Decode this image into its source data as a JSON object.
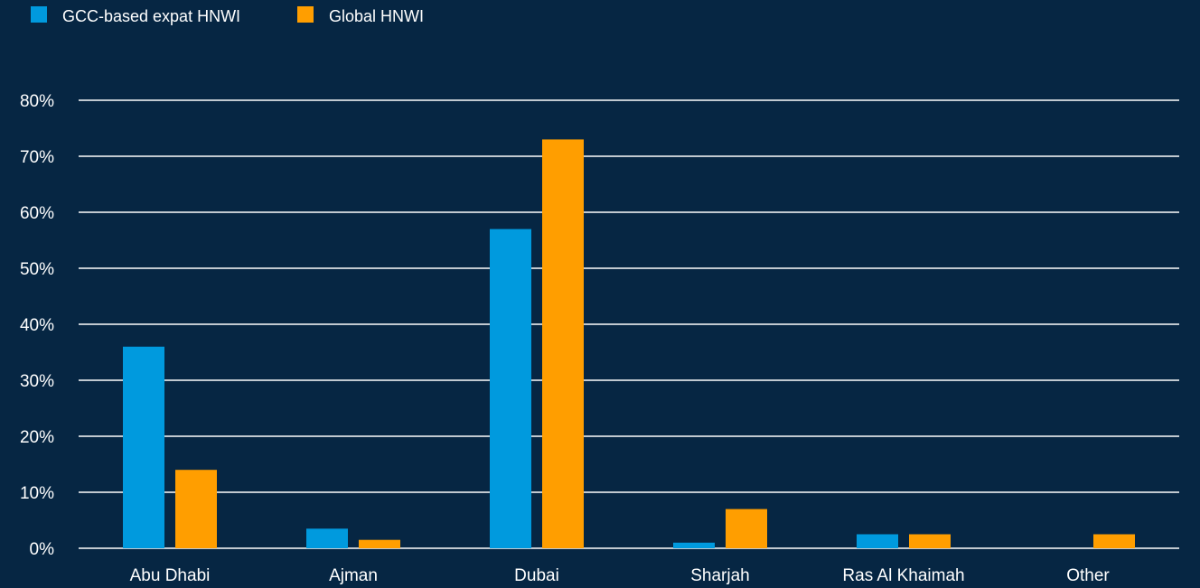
{
  "colors": {
    "background": "#062643",
    "series_1": "#009ADE",
    "series_2": "#FF9E00",
    "gridline": "#FFFFFF"
  },
  "chart_data": {
    "type": "bar",
    "title": "",
    "xlabel": "",
    "ylabel": "",
    "ylim": [
      0,
      80
    ],
    "yticks": [
      0,
      10,
      20,
      30,
      40,
      50,
      60,
      70,
      80
    ],
    "ytick_labels": [
      "0%",
      "10%",
      "20%",
      "30%",
      "40%",
      "50%",
      "60%",
      "70%",
      "80%"
    ],
    "grid": true,
    "legend_position": "top-left",
    "categories": [
      "Abu Dhabi",
      "Ajman",
      "Dubai",
      "Sharjah",
      "Ras Al Khaimah",
      "Other"
    ],
    "series": [
      {
        "name": "GCC-based expat HNWI",
        "color": "#009ADE",
        "values": [
          36,
          3.5,
          57,
          1,
          2.5,
          0
        ]
      },
      {
        "name": "Global HNWI",
        "color": "#FF9E00",
        "values": [
          14,
          1.5,
          73,
          7,
          2.5,
          2.5
        ]
      }
    ]
  }
}
